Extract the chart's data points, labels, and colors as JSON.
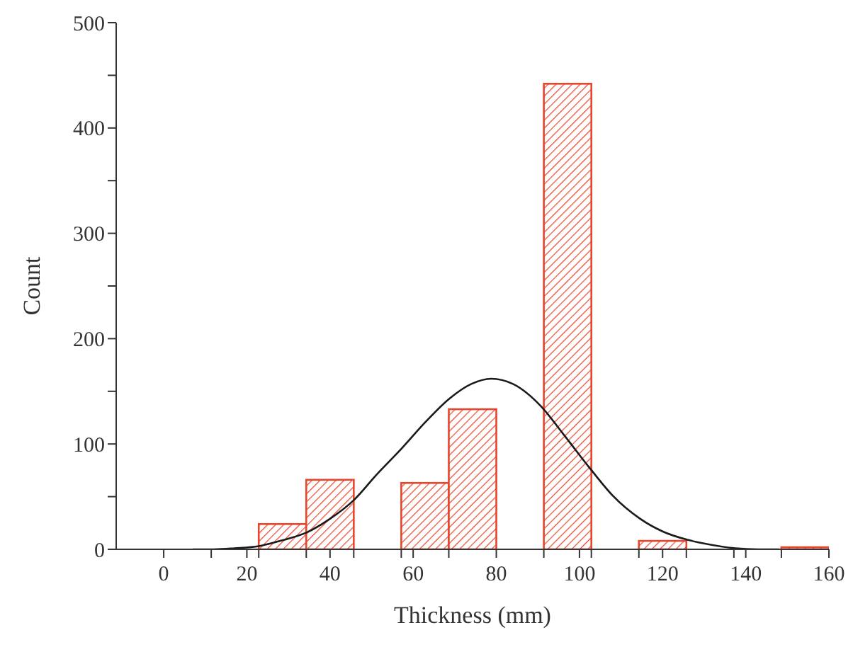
{
  "chart_data": {
    "type": "histogram",
    "xlabel": "Thickness (mm)",
    "ylabel": "Count",
    "bins": [
      22.86,
      34.29,
      45.71,
      57.14,
      68.57,
      80,
      91.43,
      102.86,
      114.29,
      125.71,
      137.14,
      148.57,
      160
    ],
    "values": [
      24,
      66,
      0,
      63,
      133,
      0,
      442,
      0,
      8,
      0,
      0,
      2
    ],
    "color": "#e8452c",
    "series": [
      {
        "type": "line",
        "color": "#1a1a1a",
        "x": [
          7,
          12,
          17,
          22.9,
          28,
          34.4,
          40,
          45.8,
          51,
          57.3,
          63,
          68.7,
          74,
          78.8,
          84,
          90.7,
          96,
          102.7,
          108,
          114.6,
          120,
          126,
          132,
          137.5,
          143,
          148
        ],
        "values": [
          0,
          0,
          1,
          3,
          8,
          16,
          29,
          47,
          70,
          96,
          121,
          143,
          157,
          162,
          157,
          136,
          110,
          76,
          51,
          29,
          17,
          9,
          4,
          1,
          0,
          0
        ]
      }
    ],
    "xlim": [
      -11.43,
      160
    ],
    "xticks": [
      0,
      20,
      40,
      60,
      80,
      100,
      120,
      140,
      160,
      {
        "value": 11.43,
        "label": null
      },
      {
        "value": 22.86,
        "label": null
      },
      {
        "value": 34.29,
        "label": null
      },
      {
        "value": 45.71,
        "label": null
      },
      {
        "value": 57.14,
        "label": null
      },
      {
        "value": 68.57,
        "label": null
      },
      {
        "value": 91.43,
        "label": null
      },
      {
        "value": 102.86,
        "label": null
      },
      {
        "value": 114.29,
        "label": null
      },
      {
        "value": 125.71,
        "label": null
      },
      {
        "value": 137.14,
        "label": null
      },
      {
        "value": 148.57,
        "label": null
      }
    ],
    "ylim": [
      0,
      500
    ],
    "yticks": [
      0,
      100,
      200,
      300,
      400,
      500,
      {
        "value": 50,
        "label": null
      },
      {
        "value": 150,
        "label": null
      },
      {
        "value": 250,
        "label": null
      },
      {
        "value": 350,
        "label": null
      },
      {
        "value": 450,
        "label": null
      }
    ],
    "grid": false,
    "legend": false
  }
}
